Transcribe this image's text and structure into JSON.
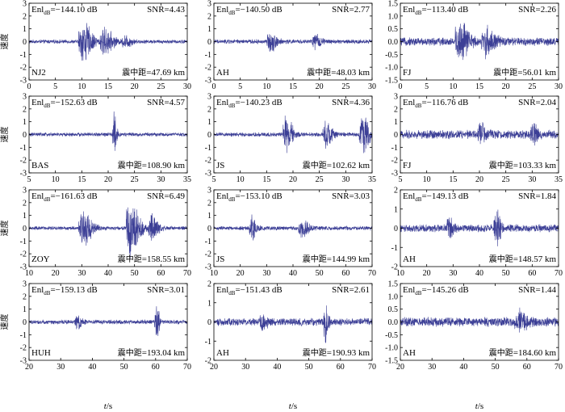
{
  "figure": {
    "xlabel_main": "t",
    "xlabel_unit": "/s",
    "ylabel": "速度"
  },
  "style": {
    "trace_color": "#3c3f96",
    "axis_color": "#000000"
  },
  "chart_data": [
    {
      "type": "line",
      "row": 0,
      "col": 0,
      "station": "NJ2",
      "enl_value": "−144.10 dB",
      "snr": "SNR=4.43",
      "dist_label": "震中距",
      "dist_value": "=47.69 km",
      "xlim": [
        0,
        30
      ],
      "xticks": [
        0,
        5,
        10,
        15,
        20,
        25,
        30
      ],
      "ylim": [
        -3,
        3
      ],
      "yticks": [
        -3,
        -2,
        -1,
        0,
        1,
        2,
        3
      ],
      "noise_amp": 0.12,
      "bursts": [
        {
          "t": 10,
          "a": 1.4,
          "w": 2.0
        },
        {
          "t": 14,
          "a": 0.9,
          "w": 2.0
        },
        {
          "t": 18,
          "a": 0.4,
          "w": 1.5
        }
      ]
    },
    {
      "type": "line",
      "row": 0,
      "col": 1,
      "station": "AH",
      "enl_value": "−140.50 dB",
      "snr": "SNR=2.77",
      "dist_label": "震中距",
      "dist_value": "=48.03 km",
      "xlim": [
        0,
        30
      ],
      "xticks": [
        0,
        5,
        10,
        15,
        20,
        25,
        30
      ],
      "ylim": [
        -3,
        3
      ],
      "yticks": [
        -3,
        -2,
        -1,
        0,
        1,
        2,
        3
      ],
      "noise_amp": 0.14,
      "bursts": [
        {
          "t": 10.5,
          "a": 0.6,
          "w": 1.5
        },
        {
          "t": 19,
          "a": 0.4,
          "w": 1.5
        }
      ]
    },
    {
      "type": "line",
      "row": 0,
      "col": 2,
      "station": "FJ",
      "enl_value": "−113.40 dB",
      "snr": "SNR=2.26",
      "dist_label": "震中距",
      "dist_value": "=56.01 km",
      "xlim": [
        0,
        30
      ],
      "xticks": [
        0,
        5,
        10,
        15,
        20,
        25,
        30
      ],
      "ylim": [
        -1.5,
        1.5
      ],
      "yticks": [
        -1.5,
        -1.0,
        -0.5,
        0,
        0.5,
        1.0,
        1.5
      ],
      "noise_amp": 0.13,
      "bursts": [
        {
          "t": 11,
          "a": 0.7,
          "w": 2.0
        },
        {
          "t": 16,
          "a": 0.4,
          "w": 2.0
        }
      ]
    },
    {
      "type": "line",
      "row": 1,
      "col": 0,
      "station": "BAS",
      "enl_value": "−152.63 dB",
      "snr": "SNR=4.57",
      "dist_label": "震中距",
      "dist_value": "=108.90 km",
      "xlim": [
        5,
        35
      ],
      "xticks": [
        5,
        10,
        15,
        20,
        25,
        30,
        35
      ],
      "ylim": [
        -3,
        3
      ],
      "yticks": [
        -3,
        -2,
        -1,
        0,
        1,
        2,
        3
      ],
      "noise_amp": 0.12,
      "bursts": [
        {
          "t": 21,
          "a": 1.5,
          "w": 0.7
        }
      ]
    },
    {
      "type": "line",
      "row": 1,
      "col": 1,
      "station": "JS",
      "enl_value": "−140.23 dB",
      "snr": "SNR=4.36",
      "dist_label": "震中距",
      "dist_value": "=102.62 km",
      "xlim": [
        5,
        35
      ],
      "xticks": [
        5,
        10,
        15,
        20,
        25,
        30,
        35
      ],
      "ylim": [
        -3,
        3
      ],
      "yticks": [
        -3,
        -2,
        -1,
        0,
        1,
        2,
        3
      ],
      "noise_amp": 0.13,
      "bursts": [
        {
          "t": 18.5,
          "a": 1.2,
          "w": 1.5
        },
        {
          "t": 26,
          "a": 0.8,
          "w": 1.5
        },
        {
          "t": 33,
          "a": 1.4,
          "w": 1.5
        }
      ]
    },
    {
      "type": "line",
      "row": 1,
      "col": 2,
      "station": "FJ",
      "enl_value": "−116.76 dB",
      "snr": "SNR=2.04",
      "dist_label": "震中距",
      "dist_value": "=103.33 km",
      "xlim": [
        5,
        35
      ],
      "xticks": [
        5,
        10,
        15,
        20,
        25,
        30,
        35
      ],
      "ylim": [
        -3,
        3
      ],
      "yticks": [
        -3,
        -2,
        -1,
        0,
        1,
        2,
        3
      ],
      "noise_amp": 0.28,
      "bursts": [
        {
          "t": 20,
          "a": 0.7,
          "w": 1.2
        },
        {
          "t": 30,
          "a": 0.6,
          "w": 1.2
        }
      ]
    },
    {
      "type": "line",
      "row": 2,
      "col": 0,
      "station": "ZOY",
      "enl_value": "−161.63 dB",
      "snr": "SNR=6.49",
      "dist_label": "震中距",
      "dist_value": "=158.55 km",
      "xlim": [
        10,
        70
      ],
      "xticks": [
        10,
        20,
        30,
        40,
        50,
        60,
        70
      ],
      "ylim": [
        -3,
        3
      ],
      "yticks": [
        -3,
        -2,
        -1,
        0,
        1,
        2,
        3
      ],
      "noise_amp": 0.12,
      "bursts": [
        {
          "t": 30,
          "a": 1.2,
          "w": 4
        },
        {
          "t": 48,
          "a": 2.0,
          "w": 4
        },
        {
          "t": 56,
          "a": 0.8,
          "w": 3
        }
      ]
    },
    {
      "type": "line",
      "row": 2,
      "col": 1,
      "station": "JS",
      "enl_value": "−153.10 dB",
      "snr": "SNR=3.03",
      "dist_label": "震中距",
      "dist_value": "=144.99 km",
      "xlim": [
        10,
        70
      ],
      "xticks": [
        10,
        20,
        30,
        40,
        50,
        60,
        70
      ],
      "ylim": [
        -3,
        3
      ],
      "yticks": [
        -3,
        -2,
        -1,
        0,
        1,
        2,
        3
      ],
      "noise_amp": 0.13,
      "bursts": [
        {
          "t": 24,
          "a": 0.9,
          "w": 2
        },
        {
          "t": 43,
          "a": 0.6,
          "w": 3
        }
      ]
    },
    {
      "type": "line",
      "row": 2,
      "col": 2,
      "station": "AH",
      "enl_value": "−149.13 dB",
      "snr": "SNR=1.84",
      "dist_label": "震中距",
      "dist_value": "=148.57 km",
      "xlim": [
        10,
        70
      ],
      "xticks": [
        10,
        20,
        30,
        40,
        50,
        60,
        70
      ],
      "ylim": [
        -2,
        2
      ],
      "yticks": [
        -2,
        -1,
        0,
        1,
        2
      ],
      "noise_amp": 0.16,
      "bursts": [
        {
          "t": 28,
          "a": 0.5,
          "w": 2
        },
        {
          "t": 46,
          "a": 0.8,
          "w": 2
        }
      ]
    },
    {
      "type": "line",
      "row": 3,
      "col": 0,
      "station": "HUH",
      "enl_value": "−159.13 dB",
      "snr": "SNR=3.01",
      "dist_label": "震中距",
      "dist_value": "=193.04 km",
      "xlim": [
        20,
        70
      ],
      "xticks": [
        20,
        30,
        40,
        50,
        60,
        70
      ],
      "ylim": [
        -3,
        3
      ],
      "yticks": [
        -3,
        -2,
        -1,
        0,
        1,
        2,
        3
      ],
      "noise_amp": 0.14,
      "bursts": [
        {
          "t": 35,
          "a": 0.5,
          "w": 1.5
        },
        {
          "t": 60,
          "a": 1.3,
          "w": 1.2
        }
      ]
    },
    {
      "type": "line",
      "row": 3,
      "col": 1,
      "station": "AH",
      "enl_value": "−151.43 dB",
      "snr": "SNR=2.61",
      "dist_label": "震中距",
      "dist_value": "=190.93 km",
      "xlim": [
        20,
        70
      ],
      "xticks": [
        20,
        30,
        40,
        50,
        60,
        70
      ],
      "ylim": [
        -2,
        2
      ],
      "yticks": [
        -2,
        -1,
        0,
        1,
        2
      ],
      "noise_amp": 0.16,
      "bursts": [
        {
          "t": 35,
          "a": 0.4,
          "w": 2
        },
        {
          "t": 55,
          "a": 1.1,
          "w": 1
        }
      ]
    },
    {
      "type": "line",
      "row": 3,
      "col": 2,
      "station": "AH",
      "enl_value": "−145.26 dB",
      "snr": "SNR=1.44",
      "dist_label": "震中距",
      "dist_value": "=184.60 km",
      "xlim": [
        20,
        70
      ],
      "xticks": [
        20,
        30,
        40,
        50,
        60,
        70
      ],
      "ylim": [
        -1.5,
        1.5
      ],
      "yticks": [
        -1.5,
        -1.0,
        -0.5,
        0,
        0.5,
        1.0,
        1.5
      ],
      "noise_amp": 0.15,
      "bursts": [
        {
          "t": 57,
          "a": 0.3,
          "w": 3
        }
      ]
    }
  ]
}
